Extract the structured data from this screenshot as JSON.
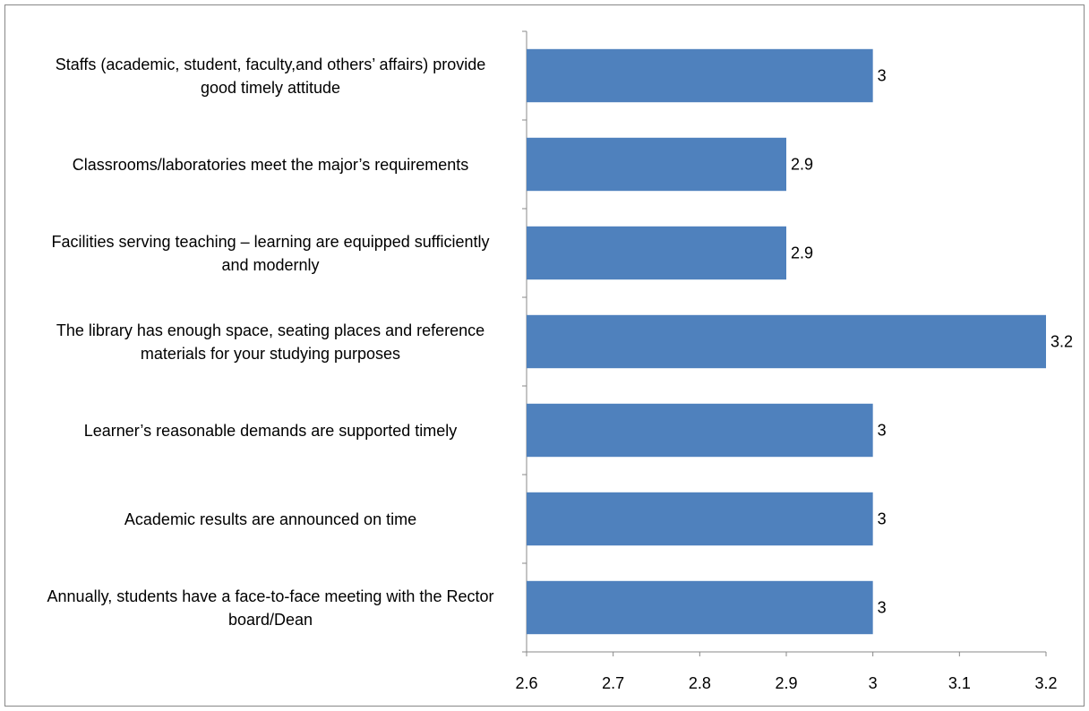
{
  "chart_data": {
    "type": "barh",
    "categories": [
      "Staffs (academic, student, faculty,and others’ affairs) provide good timely attitude",
      "Classrooms/laboratories meet the major’s requirements",
      "Facilities serving teaching – learning are equipped sufficiently and modernly",
      "The library has enough space, seating places and reference materials for your studying purposes",
      "Learner’s reasonable demands are supported timely",
      "Academic results are announced on time",
      "Annually, students have a face-to-face meeting with the Rector board/Dean"
    ],
    "values": [
      3,
      2.9,
      2.9,
      3.2,
      3,
      3,
      3
    ],
    "color": "#4f81bd",
    "xlim": [
      2.6,
      3.2
    ],
    "xticks": [
      2.6,
      2.7,
      2.8,
      2.9,
      3,
      3.1,
      3.2
    ],
    "grid": false
  }
}
